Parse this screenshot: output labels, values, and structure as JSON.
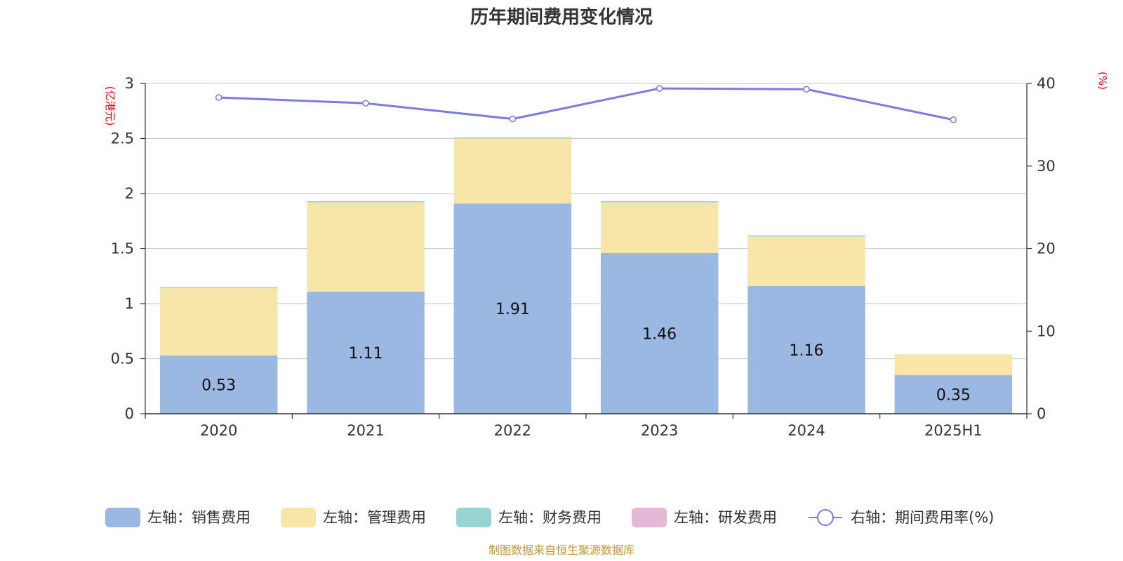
{
  "chart_data": {
    "type": "bar",
    "title": "历年期间费用变化情况",
    "categories": [
      "2020",
      "2021",
      "2022",
      "2023",
      "2024",
      "2025H1"
    ],
    "series": [
      {
        "name": "左轴：销售费用",
        "axis": "left",
        "color": "#9bb8e2",
        "values": [
          0.53,
          1.11,
          1.91,
          1.46,
          1.16,
          0.35
        ]
      },
      {
        "name": "左轴：管理费用",
        "axis": "left",
        "color": "#f7e6a8",
        "values": [
          0.61,
          0.81,
          0.59,
          0.46,
          0.45,
          0.19
        ]
      },
      {
        "name": "左轴：财务费用",
        "axis": "left",
        "color": "#98d4d4",
        "values": [
          0.01,
          0.01,
          0.01,
          0.01,
          0.01,
          0.0
        ]
      },
      {
        "name": "左轴：研发费用",
        "axis": "left",
        "color": "#e6b8d8",
        "values": [
          0,
          0,
          0,
          0,
          0,
          0
        ]
      },
      {
        "name": "右轴：期间费用率(%)",
        "axis": "right",
        "type": "line",
        "color": "#7a7ae8",
        "values": [
          38.3,
          37.6,
          35.7,
          39.4,
          39.3,
          35.6
        ]
      }
    ],
    "data_labels": [
      "0.53",
      "1.11",
      "1.91",
      "1.46",
      "1.16",
      "0.35"
    ],
    "y_left": {
      "label": "(亿港元)",
      "ylim": [
        0,
        3
      ],
      "ticks": [
        "0",
        "0.5",
        "1",
        "1.5",
        "2",
        "2.5",
        "3"
      ]
    },
    "y_right": {
      "label": "(%)",
      "ylim": [
        0,
        40
      ],
      "ticks": [
        "0",
        "10",
        "20",
        "30",
        "40"
      ]
    },
    "grid": true,
    "legend": "bottom"
  },
  "source": "制图数据来自恒生聚源数据库"
}
